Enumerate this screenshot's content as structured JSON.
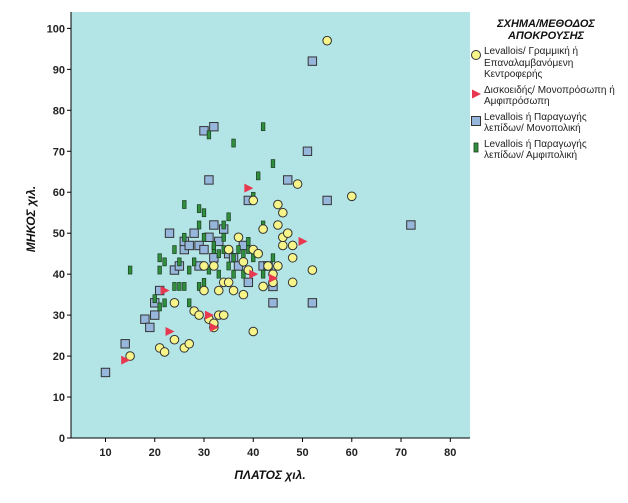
{
  "chart_data": {
    "type": "scatter",
    "xlabel": "ΠΛΑΤΟΣ χιλ.",
    "ylabel": "ΜΗΚΟΣ χιλ.",
    "xlim": [
      3,
      84
    ],
    "ylim": [
      0,
      104
    ],
    "x_ticks": [
      "10",
      "20",
      "30",
      "40",
      "50",
      "60",
      "70",
      "80"
    ],
    "y_ticks": [
      "0",
      "10",
      "20",
      "30",
      "40",
      "50",
      "60",
      "70",
      "80",
      "90",
      "100"
    ],
    "background_color": "#b3e5e7",
    "grid": false,
    "legend_position": "right",
    "legend_title": "ΣΧΗΜΑ/ΜΕΘΟΔΟΣ ΑΠΟΚΡΟΥΣΗΣ",
    "series": [
      {
        "name": "Levallois/ Γραμμική ή Επαναλαμβανόμενη Κεντροφερής",
        "marker": "circle",
        "color": "#f7f58a",
        "points": [
          [
            15,
            20
          ],
          [
            21,
            22
          ],
          [
            22,
            21
          ],
          [
            24,
            24
          ],
          [
            26,
            22
          ],
          [
            27,
            23
          ],
          [
            24,
            33
          ],
          [
            28,
            31
          ],
          [
            29,
            30
          ],
          [
            30,
            36
          ],
          [
            30,
            42
          ],
          [
            31,
            29
          ],
          [
            32,
            27
          ],
          [
            32,
            42
          ],
          [
            33,
            30
          ],
          [
            33,
            36
          ],
          [
            34,
            30
          ],
          [
            34,
            38
          ],
          [
            35,
            38
          ],
          [
            35,
            46
          ],
          [
            36,
            36
          ],
          [
            37,
            49
          ],
          [
            38,
            35
          ],
          [
            38,
            43
          ],
          [
            39,
            41
          ],
          [
            40,
            26
          ],
          [
            40,
            46
          ],
          [
            40,
            58
          ],
          [
            41,
            45
          ],
          [
            42,
            37
          ],
          [
            42,
            51
          ],
          [
            43,
            42
          ],
          [
            44,
            38
          ],
          [
            44,
            40
          ],
          [
            45,
            42
          ],
          [
            45,
            52
          ],
          [
            45,
            57
          ],
          [
            46,
            47
          ],
          [
            46,
            49
          ],
          [
            46,
            55
          ],
          [
            47,
            50
          ],
          [
            48,
            38
          ],
          [
            48,
            47
          ],
          [
            48,
            44
          ],
          [
            49,
            62
          ],
          [
            52,
            41
          ],
          [
            55,
            97
          ],
          [
            60,
            59
          ],
          [
            32,
            28
          ]
        ]
      },
      {
        "name": "Δισκοειδής/ Μονοπρόσωπη ή Αμφιπρόσωπη",
        "marker": "triangle",
        "color": "#e8384f",
        "points": [
          [
            14,
            19
          ],
          [
            22,
            36
          ],
          [
            23,
            26
          ],
          [
            31,
            30
          ],
          [
            32,
            27
          ],
          [
            39,
            61
          ],
          [
            40,
            40
          ],
          [
            44,
            39
          ],
          [
            50,
            48
          ]
        ]
      },
      {
        "name": "Levallois ή Παραγωγής λεπίδων/ Μονοπολική",
        "marker": "square",
        "color": "#97b6dc",
        "points": [
          [
            10,
            16
          ],
          [
            14,
            23
          ],
          [
            18,
            29
          ],
          [
            19,
            27
          ],
          [
            20,
            30
          ],
          [
            20,
            33
          ],
          [
            21,
            36
          ],
          [
            23,
            50
          ],
          [
            24,
            41
          ],
          [
            25,
            42
          ],
          [
            26,
            46
          ],
          [
            26,
            48
          ],
          [
            27,
            47
          ],
          [
            28,
            50
          ],
          [
            29,
            42
          ],
          [
            29,
            47
          ],
          [
            30,
            46
          ],
          [
            30,
            75
          ],
          [
            31,
            63
          ],
          [
            31,
            49
          ],
          [
            32,
            76
          ],
          [
            32,
            52
          ],
          [
            32,
            44
          ],
          [
            33,
            48
          ],
          [
            34,
            51
          ],
          [
            35,
            45
          ],
          [
            36,
            44
          ],
          [
            37,
            42
          ],
          [
            38,
            47
          ],
          [
            39,
            38
          ],
          [
            39,
            58
          ],
          [
            42,
            42
          ],
          [
            43,
            42
          ],
          [
            44,
            33
          ],
          [
            44,
            37
          ],
          [
            47,
            63
          ],
          [
            51,
            70
          ],
          [
            52,
            33
          ],
          [
            52,
            92
          ],
          [
            55,
            58
          ],
          [
            72,
            52
          ]
        ]
      },
      {
        "name": "Levallois ή Παραγωγής λεπίδων/ Αμφιπολική",
        "marker": "bar",
        "color": "#2f8f3e",
        "points": [
          [
            15,
            41
          ],
          [
            20,
            34
          ],
          [
            21,
            32
          ],
          [
            21,
            41
          ],
          [
            21,
            44
          ],
          [
            22,
            33
          ],
          [
            22,
            43
          ],
          [
            24,
            37
          ],
          [
            24,
            46
          ],
          [
            25,
            37
          ],
          [
            25,
            43
          ],
          [
            26,
            37
          ],
          [
            26,
            49
          ],
          [
            26,
            57
          ],
          [
            27,
            33
          ],
          [
            27,
            41
          ],
          [
            28,
            43
          ],
          [
            29,
            37
          ],
          [
            29,
            52
          ],
          [
            29,
            56
          ],
          [
            30,
            38
          ],
          [
            30,
            49
          ],
          [
            30,
            55
          ],
          [
            31,
            41
          ],
          [
            31,
            74
          ],
          [
            32,
            46
          ],
          [
            32,
            47
          ],
          [
            33,
            40
          ],
          [
            33,
            45
          ],
          [
            34,
            46
          ],
          [
            34,
            49
          ],
          [
            34,
            52
          ],
          [
            35,
            42
          ],
          [
            35,
            54
          ],
          [
            36,
            40
          ],
          [
            36,
            44
          ],
          [
            36,
            72
          ],
          [
            37,
            46
          ],
          [
            38,
            40
          ],
          [
            38,
            45
          ],
          [
            39,
            46
          ],
          [
            39,
            48
          ],
          [
            40,
            44
          ],
          [
            40,
            59
          ],
          [
            41,
            64
          ],
          [
            42,
            40
          ],
          [
            42,
            52
          ],
          [
            42,
            76
          ],
          [
            43,
            42
          ],
          [
            44,
            67
          ],
          [
            44,
            44
          ]
        ]
      }
    ]
  }
}
